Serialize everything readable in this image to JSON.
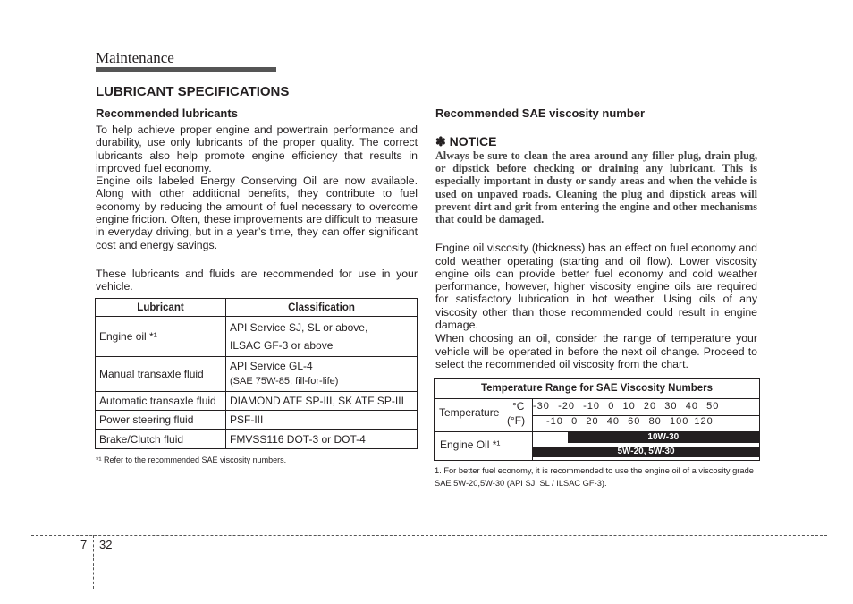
{
  "header": {
    "section": "Maintenance"
  },
  "title": "LUBRICANT SPECIFICATIONS",
  "left": {
    "subtitle": "Recommended lubricants",
    "para1": "To help achieve proper engine and powertrain performance and durability, use only lubricants of the proper quality. The correct lubricants also help promote engine efficiency that results in improved fuel economy.",
    "para2": "Engine oils labeled Energy Conserving Oil are now available. Along with other additional benefits, they contribute to fuel economy by reducing the amount of fuel necessary to overcome engine friction. Often, these improvements are difficult to measure in everyday driving, but in a year’s time, they can offer significant cost and energy savings.",
    "para3": "These lubricants and fluids are recommended for use in your vehicle.",
    "table": {
      "headers": [
        "Lubricant",
        "Classification"
      ],
      "rows": [
        {
          "lubricant": "Engine oil *¹",
          "class1": "API Service SJ, SL or above,",
          "class2": "ILSAC GF-3 or above"
        },
        {
          "lubricant": "Manual transaxle fluid",
          "class1": "API Service GL-4",
          "class2": "(SAE 75W-85, fill-for-life)"
        },
        {
          "lubricant": "Automatic transaxle fluid",
          "class1": "DIAMOND ATF SP-III, SK ATF SP-III"
        },
        {
          "lubricant": "Power steering fluid",
          "class1": "PSF-III"
        },
        {
          "lubricant": "Brake/Clutch fluid",
          "class1": "FMVSS116 DOT-3 or DOT-4"
        }
      ]
    },
    "footnote": "*¹ Refer to the recommended SAE viscosity numbers."
  },
  "right": {
    "subtitle": "Recommended SAE viscosity number",
    "notice_title": "✽ NOTICE",
    "notice_body": "Always be sure to clean the area around any filler plug, drain plug, or dipstick before checking or draining any lubricant. This is especially important in dusty or sandy areas and when the vehicle is used on unpaved roads. Cleaning the plug and dipstick areas will prevent dirt and grit from entering the engine and other mechanisms that could be damaged.",
    "para1": "Engine oil viscosity (thickness) has an effect on fuel economy and cold weather operating (starting and oil flow). Lower viscosity engine oils can provide better fuel economy and cold weather performance, however, higher viscosity engine oils are required for satisfactory lubrication in hot weather. Using oils of any viscosity other than those recommended could result in engine damage.",
    "para2": "When choosing an oil, consider the range of temperature your vehicle will be operated in before the next oil change. Proceed to select the recommended oil viscosity from the chart.",
    "viscosity_table": {
      "title": "Temperature Range for SAE Viscosity Numbers",
      "temp_label": "Temperature",
      "c_unit": "°C",
      "f_unit": "(°F)",
      "celsius": "-30   -20   -10   0   10   20   30   40   50",
      "fahrenheit": "-10   0   20   40   60   80   100  120",
      "oil_label": "Engine Oil *¹",
      "bars": [
        {
          "label": "10W-30",
          "from_c": -20,
          "to_c": 50
        },
        {
          "label": "5W-20, 5W-30",
          "from_c": -30,
          "to_c": 50
        }
      ]
    },
    "footnote": "1. For better fuel economy, it is recommended to use the engine oil of a viscosity grade SAE 5W-20,5W-30 (API SJ, SL / ILSAC GF-3)."
  },
  "footer": {
    "chapter": "7",
    "page": "32"
  }
}
